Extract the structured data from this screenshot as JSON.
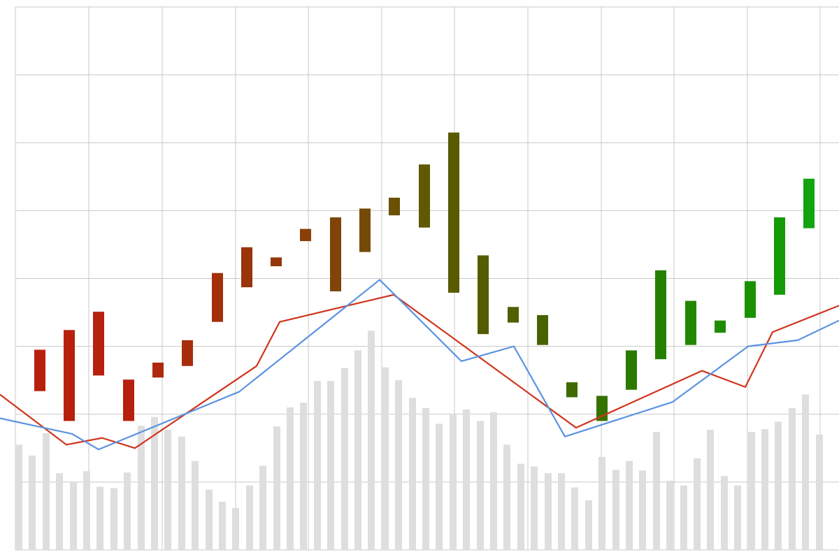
{
  "chart_data": [
    {
      "type": "bar",
      "color": "#dedede",
      "grid": true,
      "xlim": [
        0,
        1200
      ],
      "ylim": [
        0,
        8
      ],
      "xticks": [
        22,
        127,
        232,
        337,
        441,
        546,
        650,
        755,
        860,
        964,
        1069,
        1173
      ],
      "yticks": [
        0,
        1,
        2,
        3,
        4,
        5,
        6,
        7,
        8
      ],
      "x": [
        27,
        46,
        66,
        85,
        105,
        124,
        143,
        163,
        182,
        202,
        221,
        240,
        260,
        279,
        299,
        318,
        337,
        357,
        376,
        396,
        415,
        434,
        454,
        473,
        493,
        512,
        531,
        551,
        570,
        590,
        609,
        628,
        648,
        667,
        687,
        706,
        725,
        745,
        764,
        784,
        803,
        822,
        842,
        861,
        881,
        900,
        919,
        939,
        958,
        978,
        997,
        1016,
        1036,
        1055,
        1075,
        1094,
        1113,
        1133,
        1152,
        1172
      ],
      "values": [
        1.55,
        1.39,
        1.72,
        1.13,
        1.0,
        1.16,
        0.93,
        0.91,
        1.14,
        1.83,
        1.96,
        1.77,
        1.67,
        1.31,
        0.89,
        0.71,
        0.62,
        0.95,
        1.24,
        1.82,
        2.1,
        2.17,
        2.49,
        2.49,
        2.68,
        2.94,
        3.23,
        2.69,
        2.5,
        2.24,
        2.09,
        1.86,
        1.99,
        2.07,
        1.9,
        2.03,
        1.55,
        1.27,
        1.23,
        1.13,
        1.13,
        0.92,
        0.73,
        1.37,
        1.18,
        1.31,
        1.17,
        1.74,
        1.02,
        0.95,
        1.35,
        1.77,
        1.09,
        0.95,
        1.74,
        1.78,
        1.89,
        2.09,
        2.29,
        1.7
      ]
    },
    {
      "type": "range_bar",
      "xlim": [
        0,
        1200
      ],
      "ylim": [
        0,
        8
      ],
      "x": [
        57,
        99,
        141,
        184,
        226,
        268,
        311,
        353,
        395,
        437,
        480,
        522,
        564,
        607,
        649,
        691,
        734,
        776,
        818,
        861,
        903,
        945,
        988,
        1030,
        1073,
        1115,
        1157
      ],
      "low": [
        2.34,
        1.9,
        2.57,
        1.9,
        2.54,
        2.71,
        3.36,
        3.87,
        4.18,
        4.55,
        3.81,
        4.39,
        4.93,
        4.75,
        3.79,
        3.18,
        3.35,
        3.02,
        2.25,
        1.9,
        2.36,
        2.81,
        3.02,
        3.2,
        3.42,
        3.76,
        4.74
      ],
      "high": [
        2.95,
        3.24,
        3.51,
        2.51,
        2.76,
        3.09,
        4.08,
        4.46,
        4.31,
        4.73,
        4.9,
        5.03,
        5.19,
        5.68,
        6.15,
        4.34,
        3.58,
        3.46,
        2.47,
        2.27,
        2.94,
        4.12,
        3.67,
        3.38,
        3.96,
        4.9,
        5.47
      ],
      "colors": [
        "#b8200e",
        "#b8200e",
        "#b8200e",
        "#b8200e",
        "#ae2a0e",
        "#a82d0c",
        "#a3300a",
        "#9a340a",
        "#93380a",
        "#8a3e08",
        "#804408",
        "#744a06",
        "#6a5204",
        "#605802",
        "#5a5a00",
        "#555c00",
        "#4e6000",
        "#486200",
        "#3e6a00",
        "#357200",
        "#2c7a00",
        "#268000",
        "#228600",
        "#1e8c00",
        "#1a9200",
        "#169a06",
        "#12a410"
      ]
    },
    {
      "type": "line",
      "xlim": [
        0,
        1200
      ],
      "ylim": [
        0,
        8
      ],
      "series": [
        {
          "color": "#d0341c",
          "x": [
            0,
            95,
            146,
            193,
            367,
            400,
            563,
            824,
            1004,
            1066,
            1105,
            1200
          ],
          "values": [
            2.29,
            1.55,
            1.65,
            1.5,
            2.71,
            3.36,
            3.76,
            1.8,
            2.64,
            2.4,
            3.21,
            3.6
          ]
        },
        {
          "color": "#5b93e0",
          "x": [
            0,
            103,
            141,
            342,
            543,
            660,
            735,
            808,
            962,
            1070,
            1141,
            1200
          ],
          "values": [
            1.94,
            1.71,
            1.48,
            2.33,
            3.98,
            2.78,
            3.0,
            1.67,
            2.18,
            3.0,
            3.09,
            3.38
          ]
        }
      ]
    }
  ]
}
